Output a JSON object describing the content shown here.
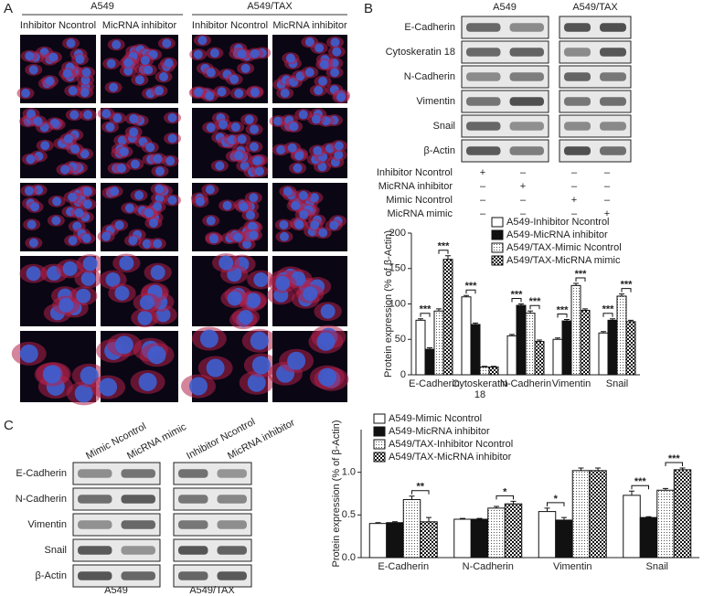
{
  "panels": {
    "a": "A",
    "b": "B",
    "c": "C"
  },
  "panel_a": {
    "groups": [
      "A549",
      "A549/TAX"
    ],
    "columns": [
      "Inhibitor Ncontrol",
      "MicRNA inhibitor",
      "Inhibitor Ncontrol",
      "MicRNA inhibitor"
    ]
  },
  "panel_b_blot": {
    "groups": [
      "A549",
      "A549/TAX"
    ],
    "proteins": [
      "E-Cadherin",
      "Cytoskeratin 18",
      "N-Cadherin",
      "Vimentin",
      "Snail",
      "β-Actin"
    ],
    "treatments": [
      {
        "name": "Inhibitor Ncontrol",
        "signs": [
          "+",
          "–",
          "–",
          "–"
        ]
      },
      {
        "name": "MicRNA inhibitor",
        "signs": [
          "–",
          "+",
          "–",
          "–"
        ]
      },
      {
        "name": "Mimic Ncontrol",
        "signs": [
          "–",
          "–",
          "+",
          "–"
        ]
      },
      {
        "name": "MicRNA mimic",
        "signs": [
          "–",
          "–",
          "–",
          "+"
        ]
      }
    ]
  },
  "panel_c_blot": {
    "columns": [
      "Mimic Ncontrol",
      "MicRNA mimic",
      "Inhibitor Ncontrol",
      "MicRNA inhibitor"
    ],
    "proteins": [
      "E-Cadherin",
      "N-Cadherin",
      "Vimentin",
      "Snail",
      "β-Actin"
    ],
    "groups": [
      "A549",
      "A549/TAX"
    ]
  },
  "chart_data": [
    {
      "type": "bar",
      "ylabel": "Protein expression (% of β-Actin)",
      "categories": [
        "E-Cadherin",
        "Cytoskeratin 18",
        "N-Cadherin",
        "Vimentin",
        "Snail"
      ],
      "series": [
        {
          "name": "A549-Inhibitor Ncontrol",
          "pattern": "white",
          "values": [
            77,
            110,
            55,
            50,
            59
          ],
          "errors": [
            2,
            2,
            2,
            2,
            2
          ]
        },
        {
          "name": "A549-MicRNA inhibitor",
          "pattern": "black",
          "values": [
            36,
            71,
            98,
            76,
            77
          ],
          "errors": [
            2,
            2,
            2,
            2,
            2
          ]
        },
        {
          "name": "A549/TAX-Mimic Ncontrol",
          "pattern": "dots",
          "values": [
            90,
            11,
            87,
            126,
            111
          ],
          "errors": [
            3,
            1,
            3,
            3,
            3
          ]
        },
        {
          "name": "A549/TAX-MicRNA mimic",
          "pattern": "checker",
          "values": [
            163,
            11,
            47,
            91,
            75
          ],
          "errors": [
            5,
            1,
            2,
            2,
            2
          ]
        }
      ],
      "ylim": [
        0,
        200
      ],
      "yticks": [
        0,
        50,
        100,
        150,
        200
      ],
      "legend": "top-right",
      "annotations": [
        {
          "text": "***",
          "category": "E-Cadherin",
          "series": [
            "A549-Inhibitor Ncontrol",
            "A549-MicRNA inhibitor"
          ]
        },
        {
          "text": "***",
          "category": "E-Cadherin",
          "series": [
            "A549/TAX-Mimic Ncontrol",
            "A549/TAX-MicRNA mimic"
          ]
        },
        {
          "text": "***",
          "category": "Cytoskeratin 18",
          "series": [
            "A549-Inhibitor Ncontrol",
            "A549-MicRNA inhibitor"
          ]
        },
        {
          "text": "***",
          "category": "N-Cadherin",
          "series": [
            "A549-Inhibitor Ncontrol",
            "A549-MicRNA inhibitor"
          ]
        },
        {
          "text": "***",
          "category": "N-Cadherin",
          "series": [
            "A549/TAX-Mimic Ncontrol",
            "A549/TAX-MicRNA mimic"
          ]
        },
        {
          "text": "***",
          "category": "Vimentin",
          "series": [
            "A549-Inhibitor Ncontrol",
            "A549-MicRNA inhibitor"
          ]
        },
        {
          "text": "***",
          "category": "Vimentin",
          "series": [
            "A549/TAX-Mimic Ncontrol",
            "A549/TAX-MicRNA mimic"
          ]
        },
        {
          "text": "***",
          "category": "Snail",
          "series": [
            "A549-Inhibitor Ncontrol",
            "A549-MicRNA inhibitor"
          ]
        },
        {
          "text": "***",
          "category": "Snail",
          "series": [
            "A549/TAX-Mimic Ncontrol",
            "A549/TAX-MicRNA mimic"
          ]
        }
      ]
    },
    {
      "type": "bar",
      "ylabel": "Protein expression (% of β-Actin)",
      "categories": [
        "E-Cadherin",
        "N-Cadherin",
        "Vimentin",
        "Snail"
      ],
      "series": [
        {
          "name": "A549-Mimic Ncontrol",
          "pattern": "white",
          "values": [
            0.4,
            0.45,
            0.54,
            0.73
          ],
          "errors": [
            0.01,
            0.01,
            0.04,
            0.05
          ]
        },
        {
          "name": "A549-MicRNA inhibitor",
          "pattern": "black",
          "values": [
            0.41,
            0.45,
            0.44,
            0.47
          ],
          "errors": [
            0.01,
            0.01,
            0.03,
            0.01
          ]
        },
        {
          "name": "A549/TAX-Inhibitor Ncontrol",
          "pattern": "dots",
          "values": [
            0.68,
            0.58,
            1.02,
            0.79
          ],
          "errors": [
            0.04,
            0.02,
            0.03,
            0.02
          ]
        },
        {
          "name": "A549/TAX-MicRNA inhibitor",
          "pattern": "checker",
          "values": [
            0.42,
            0.63,
            1.02,
            1.03
          ],
          "errors": [
            0.05,
            0.03,
            0.03,
            0.02
          ]
        }
      ],
      "ylim": [
        0,
        1.5
      ],
      "yticks": [
        {
          "value": 0,
          "label": "0.0"
        },
        0.5,
        {
          "value": 1,
          "label": "1.0"
        }
      ],
      "legend": "top-left",
      "annotations": [
        {
          "text": "**",
          "category": "E-Cadherin",
          "series": [
            "A549/TAX-Inhibitor Ncontrol",
            "A549/TAX-MicRNA inhibitor"
          ]
        },
        {
          "text": "*",
          "category": "N-Cadherin",
          "series": [
            "A549/TAX-Inhibitor Ncontrol",
            "A549/TAX-MicRNA inhibitor"
          ]
        },
        {
          "text": "*",
          "category": "Vimentin",
          "series": [
            "A549-Mimic Ncontrol",
            "A549-MicRNA inhibitor"
          ]
        },
        {
          "text": "***",
          "category": "Snail",
          "series": [
            "A549-Mimic Ncontrol",
            "A549-MicRNA inhibitor"
          ]
        },
        {
          "text": "***",
          "category": "Snail",
          "series": [
            "A549/TAX-Inhibitor Ncontrol",
            "A549/TAX-MicRNA inhibitor"
          ]
        }
      ]
    }
  ]
}
